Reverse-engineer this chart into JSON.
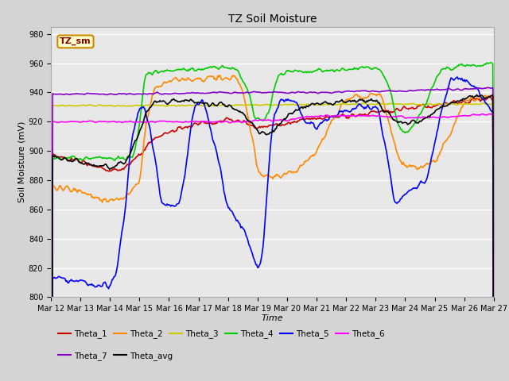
{
  "title": "TZ Soil Moisture",
  "xlabel": "Time",
  "ylabel": "Soil Moisture (mV)",
  "ylim": [
    800,
    985
  ],
  "yticks": [
    800,
    820,
    840,
    860,
    880,
    900,
    920,
    940,
    960,
    980
  ],
  "tag_label": "TZ_sm",
  "tag_bg": "#ffffcc",
  "tag_border": "#cc8800",
  "tag_text": "#880000",
  "xtick_labels": [
    "Mar 12",
    "Mar 13",
    "Mar 14",
    "Mar 15",
    "Mar 16",
    "Mar 17",
    "Mar 18",
    "Mar 19",
    "Mar 20",
    "Mar 21",
    "Mar 22",
    "Mar 23",
    "Mar 24",
    "Mar 25",
    "Mar 26",
    "Mar 27"
  ],
  "series_colors": {
    "Theta_1": "#cc0000",
    "Theta_2": "#ff8800",
    "Theta_3": "#cccc00",
    "Theta_4": "#00cc00",
    "Theta_5": "#0000ff",
    "Theta_6": "#ff00ff",
    "Theta_7": "#8800cc",
    "Theta_avg": "#000000"
  },
  "n_points": 500,
  "figsize": [
    6.4,
    4.8
  ],
  "dpi": 100,
  "fig_bg": "#d4d4d4",
  "plot_bg": "#e8e8e8",
  "grid_color": "#ffffff",
  "title_fontsize": 10,
  "tick_fontsize": 7,
  "ylabel_fontsize": 8,
  "xlabel_fontsize": 8,
  "legend_fontsize": 7.5,
  "lw": 1.2
}
